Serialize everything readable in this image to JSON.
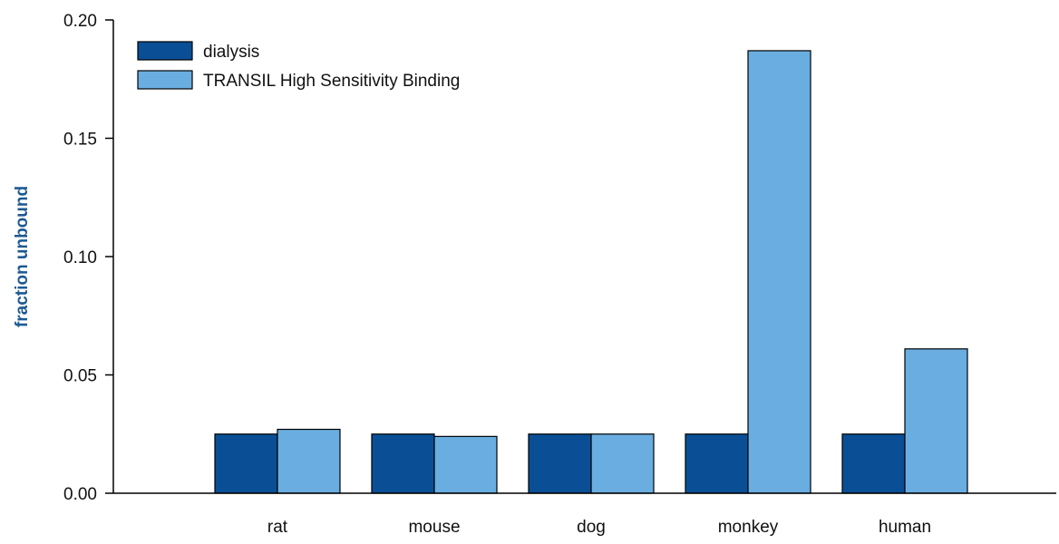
{
  "chart_data": {
    "type": "bar",
    "title": "",
    "xlabel": "",
    "ylabel": "fraction unbound",
    "ylim": [
      0,
      0.2
    ],
    "yticks": [
      "0.00",
      "0.05",
      "0.10",
      "0.15",
      "0.20"
    ],
    "categories": [
      "rat",
      "mouse",
      "dog",
      "monkey",
      "human"
    ],
    "series": [
      {
        "name": "dialysis",
        "values": [
          0.025,
          0.025,
          0.025,
          0.025,
          0.025
        ],
        "color": "#0a4f96"
      },
      {
        "name": "TRANSIL High Sensitivity Binding",
        "values": [
          0.027,
          0.024,
          0.025,
          0.187,
          0.061
        ],
        "color": "#6aaee1"
      }
    ],
    "ylabel_color": "#1d5a93",
    "grid": false,
    "legend_position": "top-left"
  }
}
